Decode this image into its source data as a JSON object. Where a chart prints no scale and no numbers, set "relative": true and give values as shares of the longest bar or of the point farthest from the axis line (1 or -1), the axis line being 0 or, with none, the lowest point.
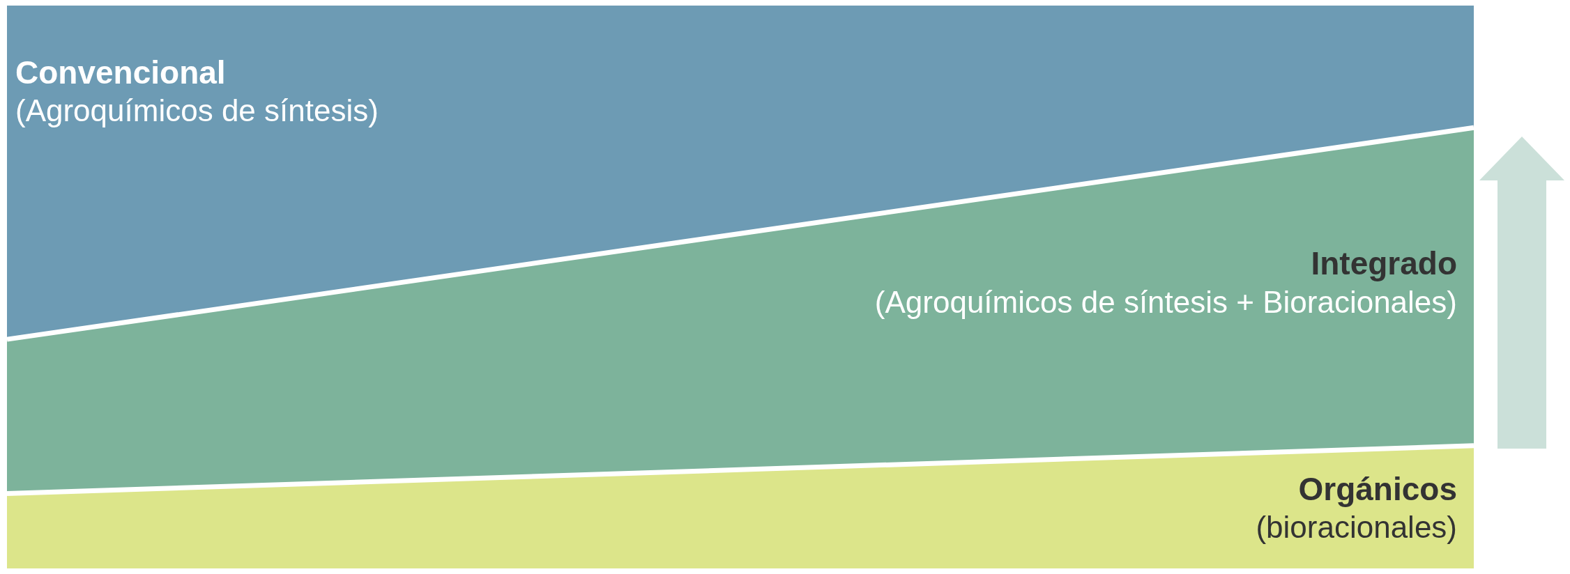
{
  "chart_data": {
    "type": "area",
    "stacked": true,
    "relative": true,
    "categories": [
      null,
      null
    ],
    "series": [
      {
        "name": "Orgánicos",
        "color": "#dce58a",
        "values": [
          0.133,
          0.218
        ]
      },
      {
        "name": "Integrado",
        "color": "#7db39b",
        "values": [
          0.274,
          0.565
        ]
      },
      {
        "name": "Convencional",
        "color": "#6d9bb4",
        "values": [
          0.593,
          0.217
        ]
      }
    ],
    "annotations": [
      "(bioracionales)",
      "(Agroquímicos de síntesis + Bioracionales)",
      "(Agroquímicos de síntesis)"
    ]
  }
}
